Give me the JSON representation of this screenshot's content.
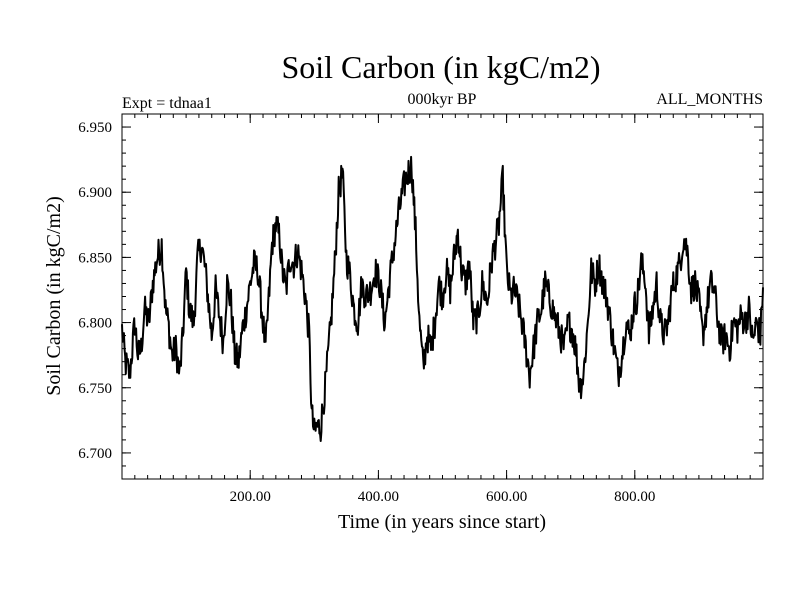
{
  "chart_data": {
    "type": "line",
    "title": "Soil Carbon (in kgC/m2)",
    "subtitle": "000kyr BP",
    "left_label": "Expt = tdnaa1",
    "right_label": "ALL_MONTHS",
    "xlabel": "Time (in years since start)",
    "ylabel": "Soil Carbon (in kgC/m2)",
    "xlim": [
      0,
      1000
    ],
    "ylim": [
      6.68,
      6.96
    ],
    "x_ticks": [
      200,
      400,
      600,
      800
    ],
    "x_tick_labels": [
      "200.00",
      "400.00",
      "600.00",
      "800.00"
    ],
    "y_ticks": [
      6.7,
      6.75,
      6.8,
      6.85,
      6.9,
      6.95
    ],
    "y_tick_labels": [
      "6.700",
      "6.750",
      "6.800",
      "6.850",
      "6.900",
      "6.950"
    ],
    "line_color": "#000000",
    "series": [
      {
        "name": "Soil Carbon",
        "anchors_x": [
          0,
          5,
          12,
          20,
          25,
          30,
          35,
          42,
          48,
          55,
          62,
          68,
          72,
          78,
          84,
          90,
          95,
          100,
          105,
          112,
          118,
          124,
          130,
          136,
          140,
          146,
          152,
          158,
          164,
          170,
          176,
          182,
          188,
          194,
          200,
          206,
          212,
          218,
          224,
          230,
          234,
          240,
          246,
          250,
          256,
          262,
          268,
          274,
          280,
          286,
          292,
          296,
          300,
          304,
          310,
          318,
          326,
          332,
          338,
          344,
          350,
          356,
          362,
          368,
          374,
          380,
          388,
          395,
          402,
          410,
          418,
          425,
          432,
          440,
          446,
          452,
          458,
          464,
          470,
          476,
          482,
          488,
          494,
          500,
          506,
          512,
          518,
          524,
          530,
          536,
          542,
          548,
          556,
          562,
          570,
          576,
          582,
          588,
          594,
          600,
          606,
          612,
          618,
          624,
          630,
          636,
          642,
          648,
          654,
          660,
          666,
          672,
          678,
          684,
          690,
          696,
          702,
          708,
          714,
          720,
          726,
          732,
          738,
          744,
          750,
          756,
          762,
          768,
          774,
          780,
          786,
          792,
          798,
          804,
          810,
          816,
          822,
          828,
          834,
          840,
          846,
          852,
          858,
          864,
          870,
          876,
          882,
          888,
          894,
          900,
          906,
          912,
          918,
          924,
          930,
          936,
          942,
          948,
          954,
          960,
          966,
          972,
          978,
          984,
          990,
          996,
          1000
        ],
        "anchors_y": [
          6.795,
          6.77,
          6.76,
          6.8,
          6.775,
          6.78,
          6.81,
          6.8,
          6.83,
          6.85,
          6.86,
          6.81,
          6.8,
          6.775,
          6.78,
          6.76,
          6.79,
          6.84,
          6.81,
          6.8,
          6.85,
          6.86,
          6.84,
          6.81,
          6.79,
          6.825,
          6.805,
          6.785,
          6.83,
          6.815,
          6.775,
          6.77,
          6.795,
          6.81,
          6.83,
          6.845,
          6.84,
          6.81,
          6.78,
          6.825,
          6.86,
          6.875,
          6.865,
          6.84,
          6.825,
          6.85,
          6.845,
          6.855,
          6.84,
          6.82,
          6.79,
          6.73,
          6.715,
          6.72,
          6.72,
          6.755,
          6.8,
          6.845,
          6.9,
          6.915,
          6.85,
          6.835,
          6.81,
          6.8,
          6.83,
          6.82,
          6.825,
          6.84,
          6.83,
          6.8,
          6.835,
          6.86,
          6.885,
          6.905,
          6.915,
          6.92,
          6.87,
          6.8,
          6.765,
          6.79,
          6.78,
          6.8,
          6.83,
          6.82,
          6.84,
          6.825,
          6.85,
          6.87,
          6.84,
          6.83,
          6.845,
          6.8,
          6.805,
          6.83,
          6.815,
          6.845,
          6.86,
          6.875,
          6.91,
          6.84,
          6.82,
          6.825,
          6.815,
          6.8,
          6.78,
          6.76,
          6.78,
          6.8,
          6.81,
          6.83,
          6.82,
          6.81,
          6.8,
          6.79,
          6.78,
          6.8,
          6.795,
          6.78,
          6.75,
          6.76,
          6.795,
          6.84,
          6.83,
          6.845,
          6.83,
          6.82,
          6.8,
          6.78,
          6.76,
          6.775,
          6.8,
          6.79,
          6.81,
          6.82,
          6.845,
          6.835,
          6.79,
          6.81,
          6.83,
          6.8,
          6.79,
          6.8,
          6.825,
          6.835,
          6.845,
          6.865,
          6.855,
          6.825,
          6.83,
          6.815,
          6.79,
          6.81,
          6.83,
          6.825,
          6.8,
          6.785,
          6.79,
          6.78,
          6.8,
          6.795,
          6.805,
          6.8,
          6.81,
          6.785,
          6.8,
          6.79,
          6.83,
          6.82
        ]
      }
    ]
  }
}
